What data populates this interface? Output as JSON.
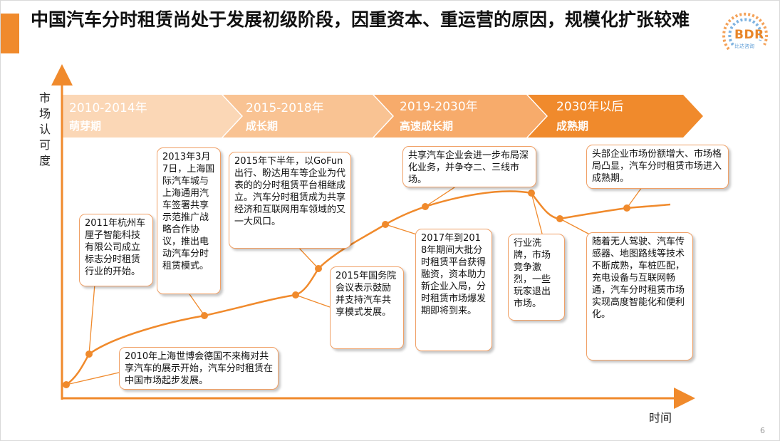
{
  "title": "中国汽车分时租赁尚处于发展初级阶段，因重资本、重运营的原因，规模化扩张较难",
  "logo": {
    "text": "BDR",
    "subtext": "比达咨询"
  },
  "axes": {
    "y_label": "市场认可度",
    "x_label": "时间"
  },
  "colors": {
    "accent": "#f08a2c",
    "phase_1": "#fbd7b6",
    "phase_2": "#f9c393",
    "phase_3": "#f7ab6b",
    "phase_4": "#f08a2c",
    "curve": "#f08a2c",
    "callout_border": "#f0a066"
  },
  "phases": [
    {
      "years": "2010-2014年",
      "name": "萌芽期"
    },
    {
      "years": "2015-2018年",
      "name": "成长期"
    },
    {
      "years": "2019-2030年",
      "name": "高速成长期"
    },
    {
      "years": "2030年以后",
      "name": "成熟期"
    }
  ],
  "events": [
    {
      "text": "2010年上海世博会德国不来梅对共享汽车的展示开始，汽车分时租赁在中国市场起步发展。"
    },
    {
      "text": "2011年杭州车厘子智能科技有限公司成立标志分时租赁行业的开始。"
    },
    {
      "text": "2013年3月7日，上海国际汽车城与上海通用汽车签署共享示范推广战略合作协议，推出电动汽车分时租赁模式。"
    },
    {
      "text": "2015年下半年，以GoFun出行、盼达用车等企业为代表的的分时租赁平台相继成立。汽车分时租赁成为共享经济和互联网用车领域的又一大风口。"
    },
    {
      "text": "2015年国务院会议表示鼓励并支持汽车共享模式发展。"
    },
    {
      "text": "共享汽车企业会进一步布局深化业务，并争夺二、三线市场。"
    },
    {
      "text": "2017年到2018年期间大批分时租赁平台获得融资，资本助力新企业入局，分时租赁市场爆发期即将到来。"
    },
    {
      "text": "行业洗牌，市场竞争激烈，一些玩家退出市场。"
    },
    {
      "text": "头部企业市场份额增大、市场格局凸显，汽车分时租赁市场进入成熟期。"
    },
    {
      "text": "随着无人驾驶、汽车传感器、地图路线等技术不断成熟，车桩匹配，充电设备与互联网畅通，汽车分时租赁市场实现高度智能化和便利化。"
    }
  ],
  "page_number": "6"
}
